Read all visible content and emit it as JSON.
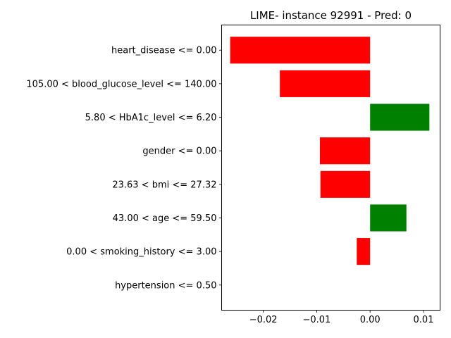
{
  "chart_data": {
    "type": "bar",
    "orientation": "horizontal",
    "title": "LIME- instance 92991 - Pred: 0",
    "xlabel": "",
    "ylabel": "",
    "categories": [
      "heart_disease <= 0.00",
      "105.00 < blood_glucose_level <= 140.00",
      "5.80 < HbA1c_level <= 6.20",
      "gender <= 0.00",
      "23.63 < bmi <= 27.32",
      "43.00 < age <= 59.50",
      "0.00 < smoking_history <= 3.00",
      "hypertension <= 0.50"
    ],
    "values": [
      -0.0262,
      -0.0169,
      0.0111,
      -0.0094,
      -0.0093,
      0.0068,
      -0.0025,
      0.0
    ],
    "xlim": [
      -0.0278,
      0.0131
    ],
    "xticks": [
      -0.02,
      -0.01,
      0.0,
      0.01
    ],
    "xtick_labels": [
      "−0.02",
      "−0.01",
      "0.00",
      "0.01"
    ],
    "colors": {
      "positive": "#008000",
      "negative": "#ff0000"
    },
    "grid": false,
    "legend": "none"
  }
}
